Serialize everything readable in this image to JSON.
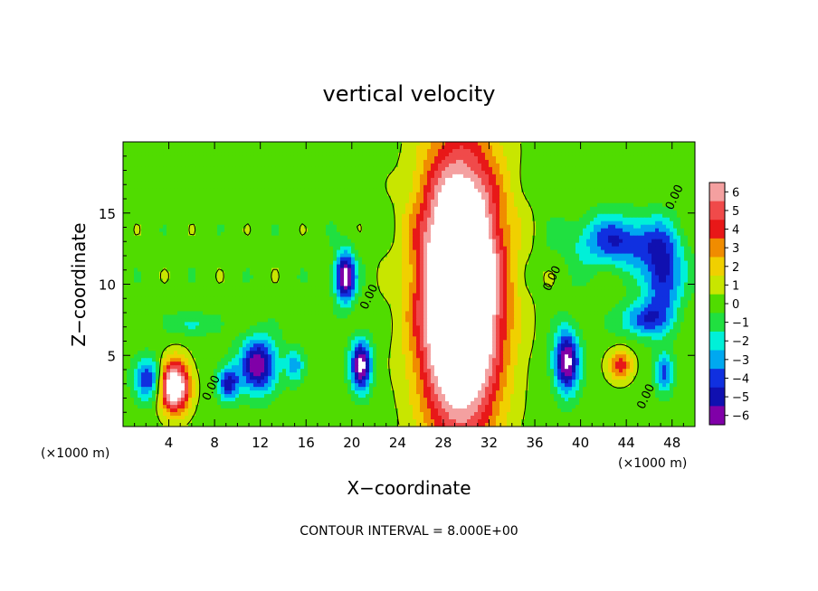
{
  "chart_data": {
    "type": "heatmap",
    "title": "vertical velocity",
    "xlabel": "X−coordinate",
    "ylabel": "Z−coordinate",
    "x_unit": "(×1000 m)",
    "y_unit": "(×1000 m)",
    "xlim": [
      0,
      50
    ],
    "ylim": [
      0,
      20
    ],
    "x_ticks": [
      4,
      8,
      12,
      16,
      20,
      24,
      28,
      32,
      36,
      40,
      44,
      48
    ],
    "y_ticks": [
      5,
      10,
      15
    ],
    "footer": "CONTOUR INTERVAL = 8.000E+00",
    "colorbar": {
      "levels": [
        6,
        5,
        4,
        3,
        2,
        1,
        0,
        -1,
        -2,
        -3,
        -4,
        -5,
        -6
      ],
      "labels": [
        "6",
        "5",
        "4",
        "3",
        "2",
        "1",
        "0",
        "−1",
        "−2",
        "−3",
        "−4",
        "−5",
        "−6"
      ],
      "colors": [
        "#f4a0a0",
        "#f04a4a",
        "#e81818",
        "#f08c00",
        "#f0d000",
        "#c8e600",
        "#50dc00",
        "#20e040",
        "#00f0d8",
        "#00a8f0",
        "#1030e0",
        "#1010b0",
        "#8000a8"
      ]
    },
    "contour_labels": [
      "0.00",
      "0.00",
      "0.00",
      "0.00",
      "0.00"
    ],
    "background_value": 0,
    "features": [
      {
        "name": "central updraft",
        "x": 29.5,
        "z": 9.5,
        "rx": 3.5,
        "rz": 9.5,
        "value": 14
      },
      {
        "name": "left updraft",
        "x": 4.5,
        "z": 2.8,
        "rx": 1.3,
        "rz": 1.8,
        "value": 9
      },
      {
        "name": "right updraft",
        "x": 43.5,
        "z": 4.3,
        "rx": 1.1,
        "rz": 1.1,
        "value": 4
      },
      {
        "name": "downdraft",
        "x": 19.4,
        "z": 10.5,
        "rx": 0.9,
        "rz": 1.8,
        "value": -7
      },
      {
        "name": "downdraft",
        "x": 20.8,
        "z": 4.3,
        "rx": 0.9,
        "rz": 1.8,
        "value": -7
      },
      {
        "name": "downdraft",
        "x": 11.8,
        "z": 4.3,
        "rx": 1.6,
        "rz": 1.9,
        "value": -6.5
      },
      {
        "name": "downdraft",
        "x": 9.2,
        "z": 3.0,
        "rx": 0.9,
        "rz": 1.2,
        "value": -5
      },
      {
        "name": "downdraft",
        "x": 38.8,
        "z": 4.6,
        "rx": 1.1,
        "rz": 2.2,
        "value": -7
      },
      {
        "name": "downdraft",
        "x": 2.2,
        "z": 3.3,
        "rx": 1.2,
        "rz": 1.5,
        "value": -4.5
      },
      {
        "name": "downdraft",
        "x": 43.5,
        "z": 13.0,
        "rx": 4.0,
        "rz": 1.8,
        "value": -4.5
      },
      {
        "name": "downdraft",
        "x": 47.2,
        "z": 10.5,
        "rx": 1.6,
        "rz": 2.8,
        "value": -5
      },
      {
        "name": "downdraft",
        "x": 47.3,
        "z": 3.8,
        "rx": 0.8,
        "rz": 1.4,
        "value": -4
      },
      {
        "name": "downdraft",
        "x": 45.5,
        "z": 7.5,
        "rx": 2.0,
        "rz": 1.2,
        "value": -4
      },
      {
        "name": "downdraft",
        "x": 15.0,
        "z": 4.3,
        "rx": 0.8,
        "rz": 1.2,
        "value": -3
      },
      {
        "name": "downdraft",
        "x": 6.0,
        "z": 7.2,
        "rx": 1.8,
        "rz": 0.8,
        "value": -2
      }
    ]
  }
}
